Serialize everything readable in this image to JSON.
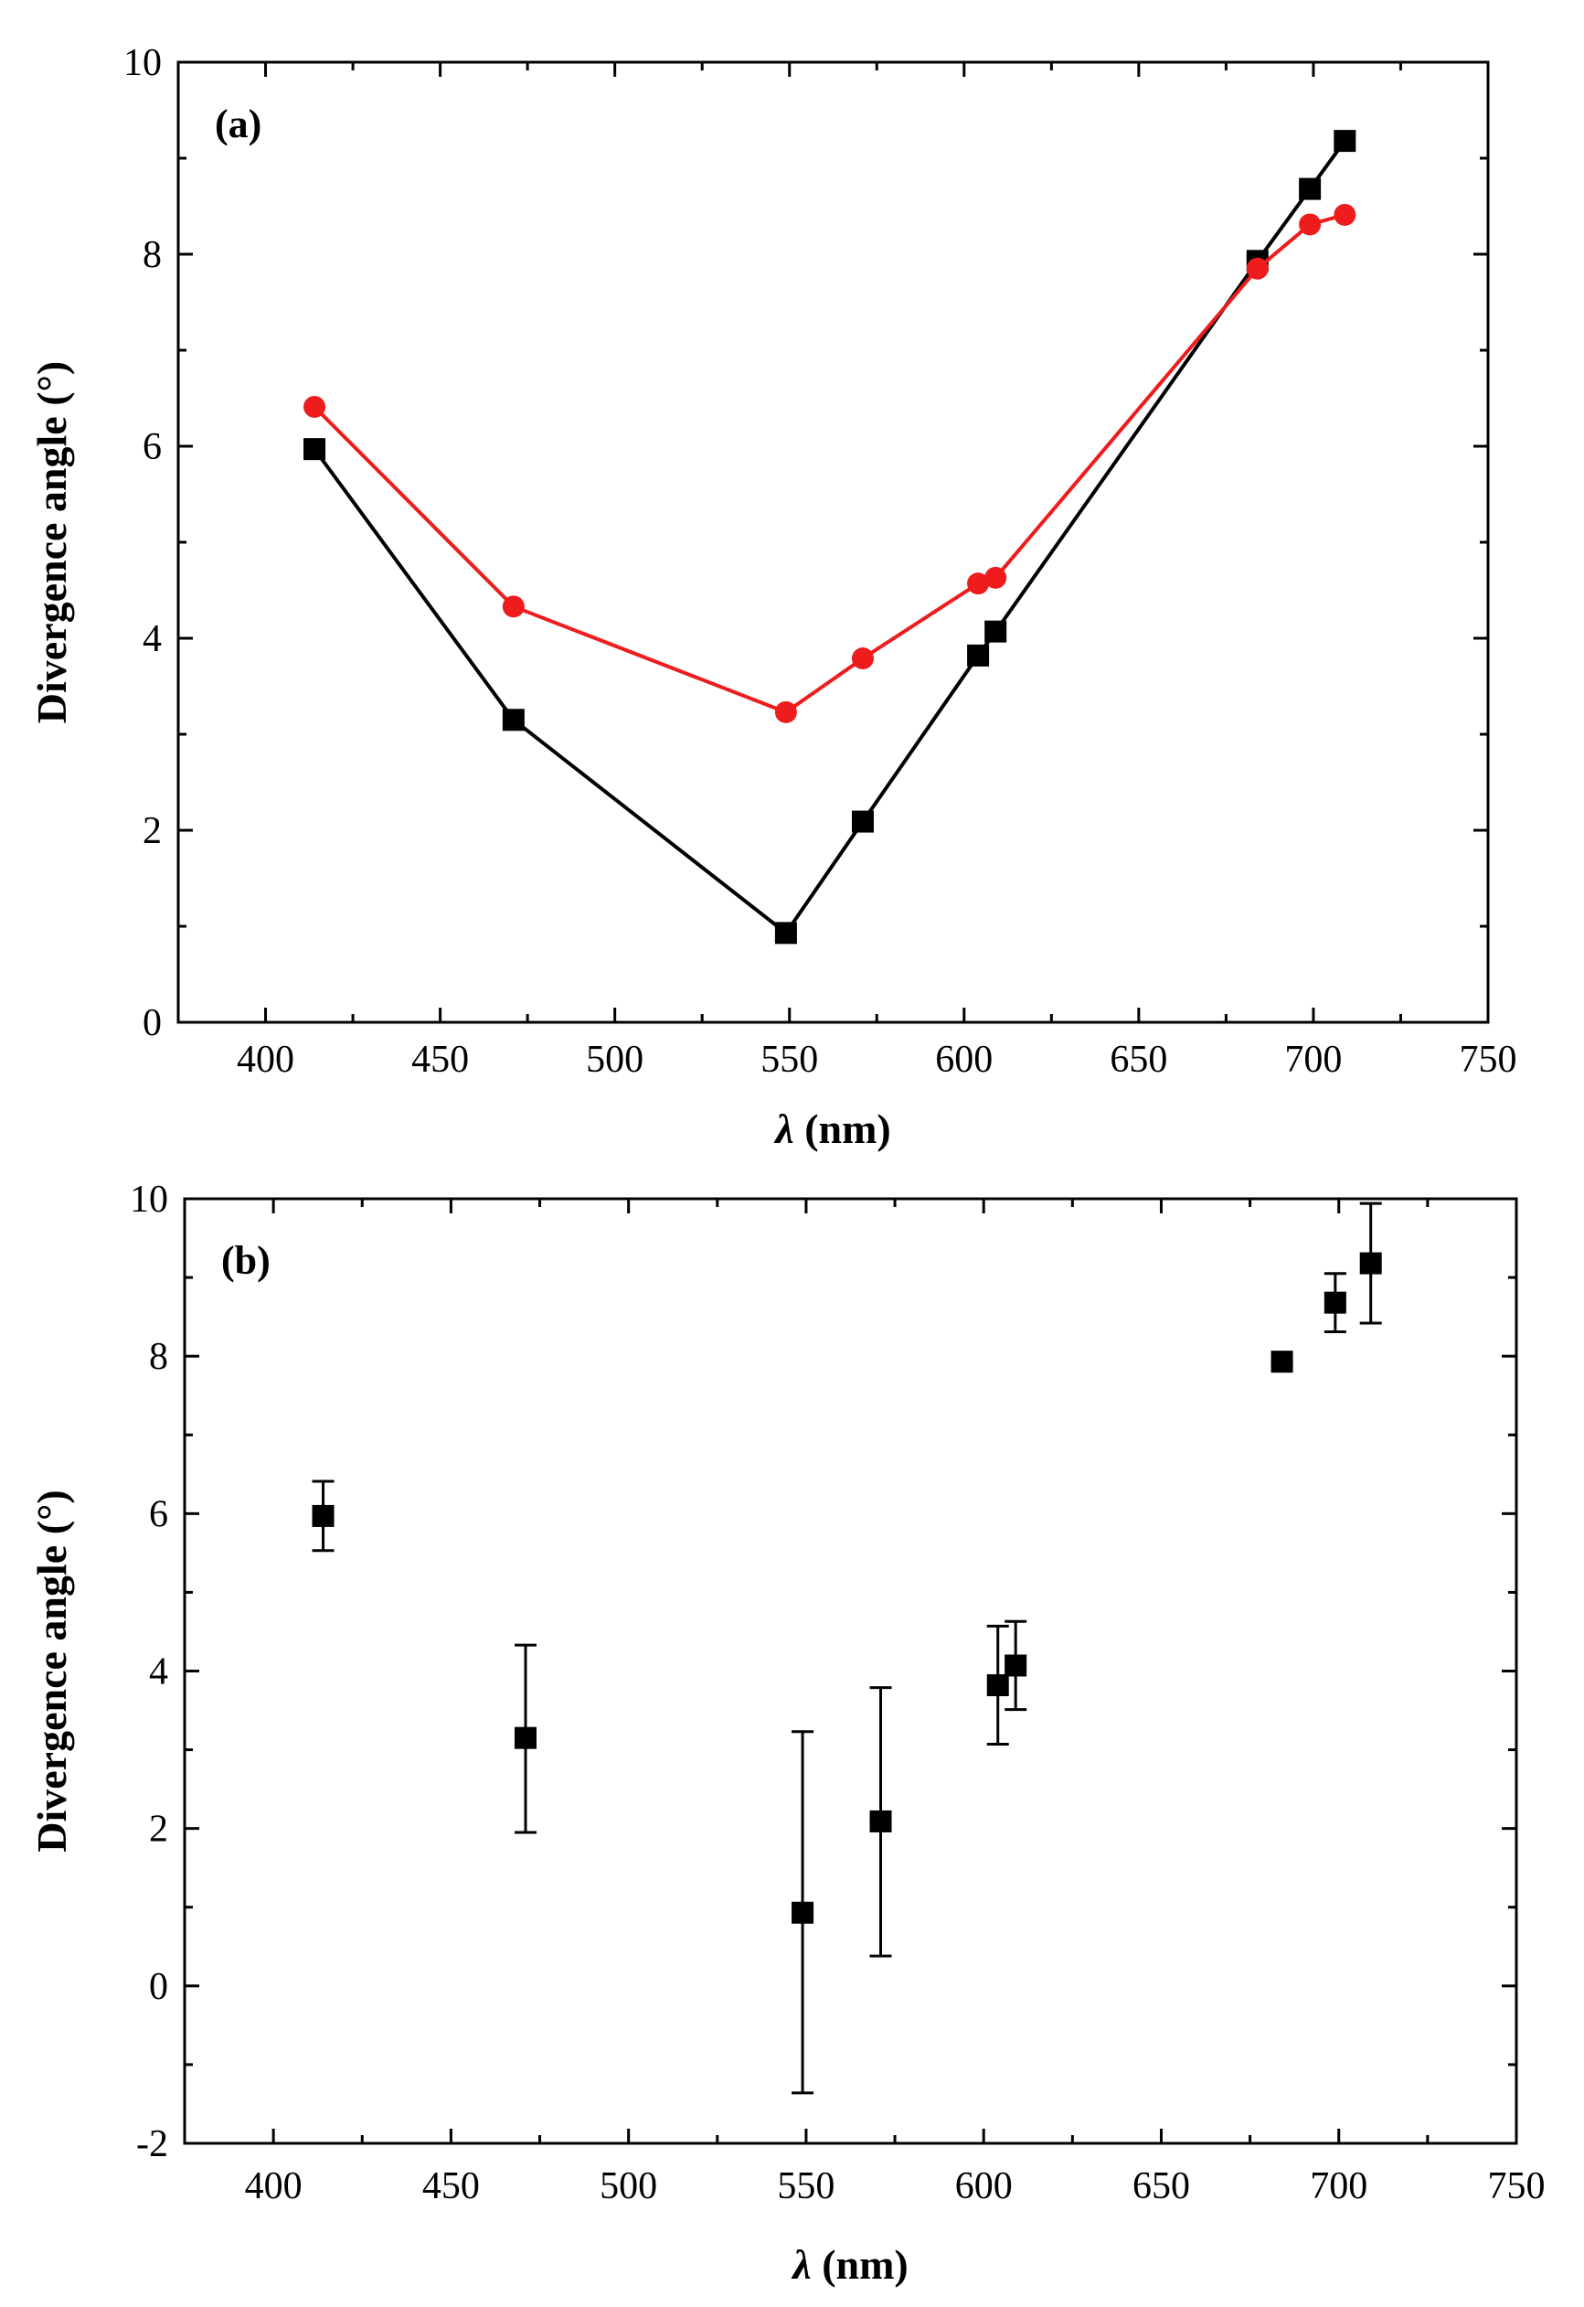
{
  "chart_data": [
    {
      "type": "line",
      "panel_label": "(a)",
      "xlabel_symbol": "λ",
      "xlabel_unit": "(nm)",
      "ylabel": "Divergence angle  (°)",
      "xlim": [
        375,
        750
      ],
      "ylim": [
        0,
        10
      ],
      "xticks": [
        400,
        450,
        500,
        550,
        600,
        650,
        700,
        750
      ],
      "yticks": [
        0,
        2,
        4,
        6,
        8,
        10
      ],
      "legend": "none",
      "series": [
        {
          "name": "black-squares",
          "color": "#000000",
          "marker": "square",
          "x": [
            414,
            471,
            549,
            571,
            604,
            609,
            684,
            699,
            709
          ],
          "y": [
            5.97,
            3.15,
            0.93,
            2.09,
            3.82,
            4.07,
            7.93,
            8.68,
            9.18
          ]
        },
        {
          "name": "red-circles",
          "color": "#ee1c1c",
          "marker": "circle",
          "x": [
            414,
            471,
            549,
            571,
            604,
            609,
            684,
            699,
            709
          ],
          "y": [
            6.41,
            4.33,
            3.23,
            3.79,
            4.57,
            4.63,
            7.85,
            8.31,
            8.41
          ]
        }
      ]
    },
    {
      "type": "scatter",
      "panel_label": "(b)",
      "xlabel_symbol": "λ",
      "xlabel_unit": "(nm)",
      "ylabel": "Divergence angle  (°)",
      "xlim": [
        375,
        750
      ],
      "ylim": [
        -2,
        10
      ],
      "xticks": [
        400,
        450,
        500,
        550,
        600,
        650,
        700,
        750
      ],
      "yticks": [
        -2,
        0,
        2,
        4,
        6,
        8,
        10
      ],
      "legend": "none",
      "series": [
        {
          "name": "black-squares-with-error",
          "color": "#000000",
          "marker": "square",
          "x": [
            414,
            471,
            549,
            571,
            604,
            609,
            684,
            699,
            709
          ],
          "y": [
            5.97,
            3.15,
            0.93,
            2.09,
            3.82,
            4.07,
            7.93,
            8.68,
            9.18
          ],
          "err_low": [
            5.53,
            1.95,
            -1.36,
            0.38,
            3.07,
            3.51,
            7.9,
            8.31,
            8.42
          ],
          "err_high": [
            6.41,
            4.33,
            3.23,
            3.79,
            4.57,
            4.63,
            7.95,
            9.05,
            9.94
          ]
        }
      ]
    }
  ]
}
